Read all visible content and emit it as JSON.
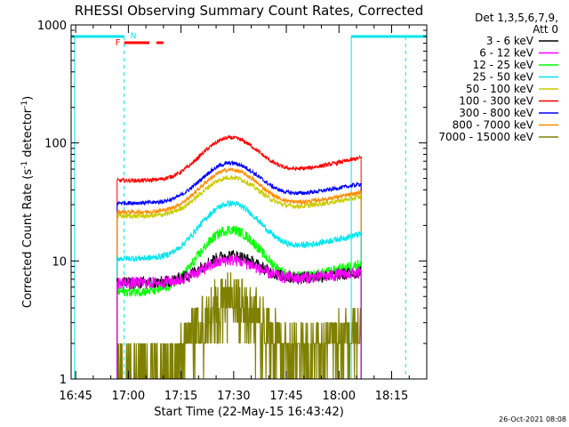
{
  "chart_data": {
    "type": "line",
    "title": "RHESSI Observing Summary Count Rates, Corrected",
    "xlabel": "Start Time (22-May-15 16:43:42)",
    "ylabel_parts": [
      "Corrected Count Rate (s",
      "-1",
      " detector",
      "-1",
      ")"
    ],
    "ylabel": "Corrected Count Rate (s-1 detector-1)",
    "timestamp": "26-Oct-2021 08:08",
    "y_scale": "log",
    "ylim": [
      1,
      1000
    ],
    "xlim_minutes_after_1645": [
      -1.3,
      100
    ],
    "x_ticks": [
      "16:45",
      "17:00",
      "17:15",
      "17:30",
      "17:45",
      "18:00",
      "18:15"
    ],
    "y_ticks": [
      "1",
      "10",
      "100",
      "1000"
    ],
    "legend_header": [
      "Det 1,3,5,6,7,9,",
      "Att 0"
    ],
    "legend_placement": "right",
    "flags": {
      "night_label": "N",
      "flare_label": "F",
      "night_color": "#00e5ee",
      "flare_color": "#ff0000",
      "night_bars_minutes": [
        [
          -1.3,
          13.8
        ],
        [
          78.5,
          100
        ]
      ],
      "night_start_minute": 13.8,
      "night_end_minute": 78.5,
      "night_solid_minutes": [
        -0.3,
        78.5
      ],
      "night_dashed_minutes": [
        13.8,
        94
      ],
      "flare_segments_minutes": [
        [
          13.8,
          21
        ],
        [
          23,
          25
        ]
      ]
    },
    "data_start_minute": 11.8,
    "data_end_minute": 81.3,
    "series": [
      {
        "name": "3 - 6 keV",
        "color": "#000000",
        "base": 6.5,
        "peak": 11,
        "end": 8,
        "noise": 0.12
      },
      {
        "name": "6 - 12 keV",
        "color": "#ff00ff",
        "base": 6.5,
        "peak": 10,
        "end": 8,
        "noise": 0.12
      },
      {
        "name": "12 - 25 keV",
        "color": "#00ff00",
        "base": 5.5,
        "peak": 18,
        "end": 9.5,
        "noise": 0.1
      },
      {
        "name": "25 - 50 keV",
        "color": "#00e5ee",
        "base": 10.5,
        "peak": 30,
        "end": 17,
        "noise": 0.06
      },
      {
        "name": "50 - 100 keV",
        "color": "#cccc00",
        "base": 24,
        "peak": 50,
        "end": 35,
        "noise": 0.05
      },
      {
        "name": "100 - 300 keV",
        "color": "#ff0000",
        "base": 48,
        "peak": 108,
        "end": 75,
        "noise": 0.04
      },
      {
        "name": "300 - 800 keV",
        "color": "#0000ff",
        "base": 31,
        "peak": 66,
        "end": 45,
        "noise": 0.04
      },
      {
        "name": "800 - 7000 keV",
        "color": "#ff8c00",
        "base": 26,
        "peak": 58,
        "end": 38,
        "noise": 0.04
      },
      {
        "name": "7000 - 15000 keV",
        "color": "#808000",
        "base": 1.3,
        "peak": 5.5,
        "end": 3,
        "noise": 0.4
      }
    ]
  }
}
